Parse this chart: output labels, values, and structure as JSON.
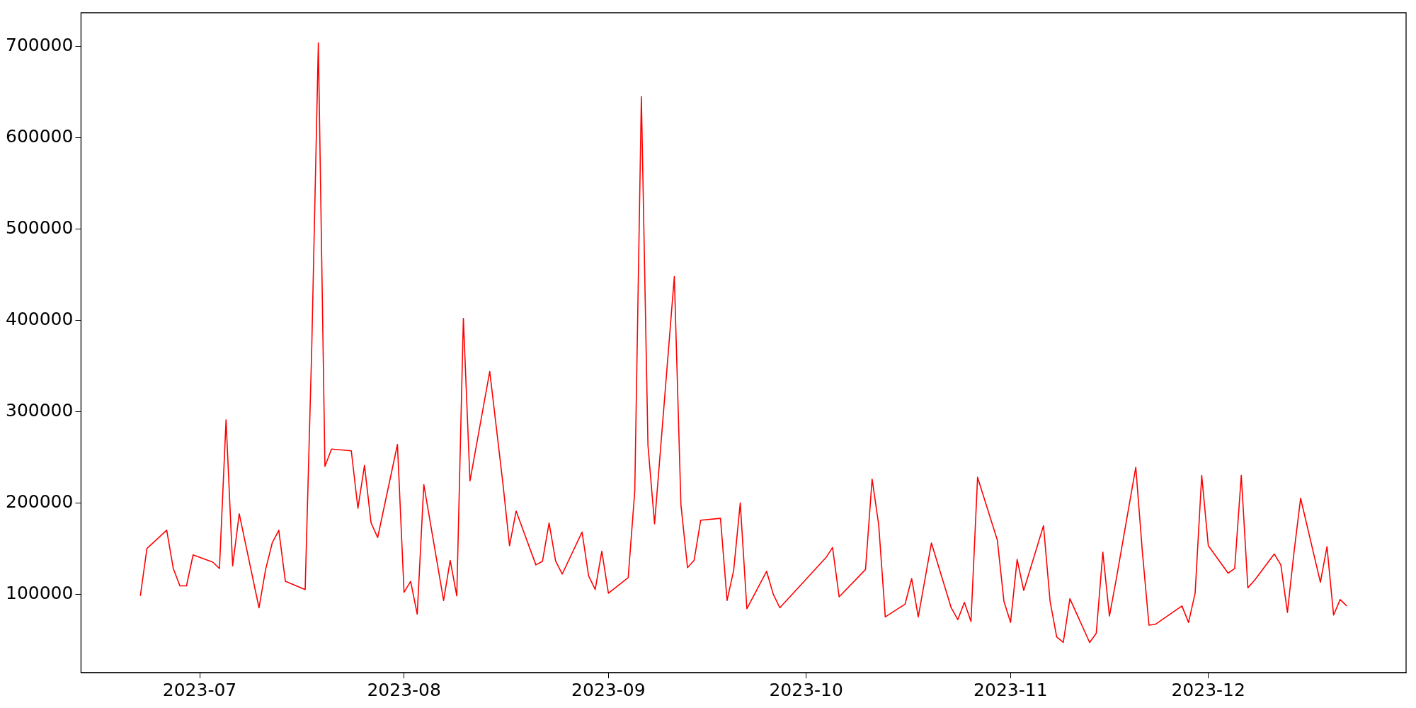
{
  "chart_data": {
    "type": "line",
    "x": [
      "2023-06-22",
      "2023-06-23",
      "2023-06-26",
      "2023-06-27",
      "2023-06-28",
      "2023-06-29",
      "2023-06-30",
      "2023-07-03",
      "2023-07-04",
      "2023-07-05",
      "2023-07-06",
      "2023-07-07",
      "2023-07-10",
      "2023-07-11",
      "2023-07-12",
      "2023-07-13",
      "2023-07-14",
      "2023-07-17",
      "2023-07-18",
      "2023-07-19",
      "2023-07-20",
      "2023-07-21",
      "2023-07-24",
      "2023-07-25",
      "2023-07-26",
      "2023-07-27",
      "2023-07-28",
      "2023-07-31",
      "2023-08-01",
      "2023-08-02",
      "2023-08-03",
      "2023-08-04",
      "2023-08-07",
      "2023-08-08",
      "2023-08-09",
      "2023-08-10",
      "2023-08-11",
      "2023-08-14",
      "2023-08-16",
      "2023-08-17",
      "2023-08-18",
      "2023-08-21",
      "2023-08-22",
      "2023-08-23",
      "2023-08-24",
      "2023-08-25",
      "2023-08-28",
      "2023-08-29",
      "2023-08-30",
      "2023-08-31",
      "2023-09-01",
      "2023-09-04",
      "2023-09-05",
      "2023-09-06",
      "2023-09-07",
      "2023-09-08",
      "2023-09-11",
      "2023-09-12",
      "2023-09-13",
      "2023-09-14",
      "2023-09-15",
      "2023-09-18",
      "2023-09-19",
      "2023-09-20",
      "2023-09-21",
      "2023-09-22",
      "2023-09-25",
      "2023-09-26",
      "2023-09-27",
      "2023-10-04",
      "2023-10-05",
      "2023-10-06",
      "2023-10-10",
      "2023-10-11",
      "2023-10-12",
      "2023-10-13",
      "2023-10-16",
      "2023-10-17",
      "2023-10-18",
      "2023-10-20",
      "2023-10-23",
      "2023-10-24",
      "2023-10-25",
      "2023-10-26",
      "2023-10-27",
      "2023-10-30",
      "2023-10-31",
      "2023-11-01",
      "2023-11-02",
      "2023-11-03",
      "2023-11-06",
      "2023-11-07",
      "2023-11-08",
      "2023-11-09",
      "2023-11-10",
      "2023-11-13",
      "2023-11-14",
      "2023-11-15",
      "2023-11-16",
      "2023-11-17",
      "2023-11-20",
      "2023-11-21",
      "2023-11-22",
      "2023-11-23",
      "2023-11-27",
      "2023-11-28",
      "2023-11-29",
      "2023-11-30",
      "2023-12-01",
      "2023-12-04",
      "2023-12-05",
      "2023-12-06",
      "2023-12-07",
      "2023-12-08",
      "2023-12-11",
      "2023-12-12",
      "2023-12-13",
      "2023-12-14",
      "2023-12-15",
      "2023-12-18",
      "2023-12-19",
      "2023-12-20",
      "2023-12-21",
      "2023-12-22"
    ],
    "series": [
      {
        "color": "#ff0000",
        "values": [
          98000,
          150000,
          170000,
          128000,
          109000,
          109000,
          143000,
          135000,
          128000,
          291000,
          131000,
          188000,
          85000,
          127000,
          156000,
          170000,
          114000,
          105000,
          370000,
          704000,
          240000,
          259000,
          257000,
          194000,
          241000,
          178000,
          162000,
          264000,
          102000,
          114000,
          78000,
          220000,
          93000,
          137000,
          98000,
          402000,
          224000,
          344000,
          221000,
          153000,
          191000,
          132000,
          136000,
          178000,
          136000,
          122000,
          168000,
          120000,
          105000,
          147000,
          101000,
          118000,
          213000,
          645000,
          263000,
          177000,
          448000,
          198000,
          129000,
          137000,
          181000,
          183000,
          93000,
          126000,
          200000,
          84000,
          125000,
          100000,
          85000,
          140000,
          151000,
          97000,
          127000,
          226000,
          176000,
          75000,
          89000,
          117000,
          75000,
          156000,
          85000,
          72000,
          91000,
          70000,
          228000,
          159000,
          92000,
          69000,
          138000,
          104000,
          175000,
          92000,
          53000,
          47000,
          95000,
          47000,
          57000,
          146000,
          76000,
          115000,
          239000,
          146000,
          66000,
          67000,
          87000,
          69000,
          101000,
          230000,
          153000,
          123000,
          128000,
          230000,
          107000,
          115000,
          144000,
          132000,
          80000,
          146000,
          205000,
          113000,
          152000,
          77000,
          94000,
          87000
        ]
      }
    ],
    "xlim": [
      "2023-06-13",
      "2023-12-31"
    ],
    "xticks": [
      {
        "value": "2023-07-01",
        "label": "2023-07"
      },
      {
        "value": "2023-08-01",
        "label": "2023-08"
      },
      {
        "value": "2023-09-01",
        "label": "2023-09"
      },
      {
        "value": "2023-10-01",
        "label": "2023-10"
      },
      {
        "value": "2023-11-01",
        "label": "2023-11"
      },
      {
        "value": "2023-12-01",
        "label": "2023-12"
      }
    ],
    "ylim": [
      14000,
      737000
    ],
    "yticks": [
      100000,
      200000,
      300000,
      400000,
      500000,
      600000,
      700000
    ],
    "grid": false,
    "legend": false
  }
}
